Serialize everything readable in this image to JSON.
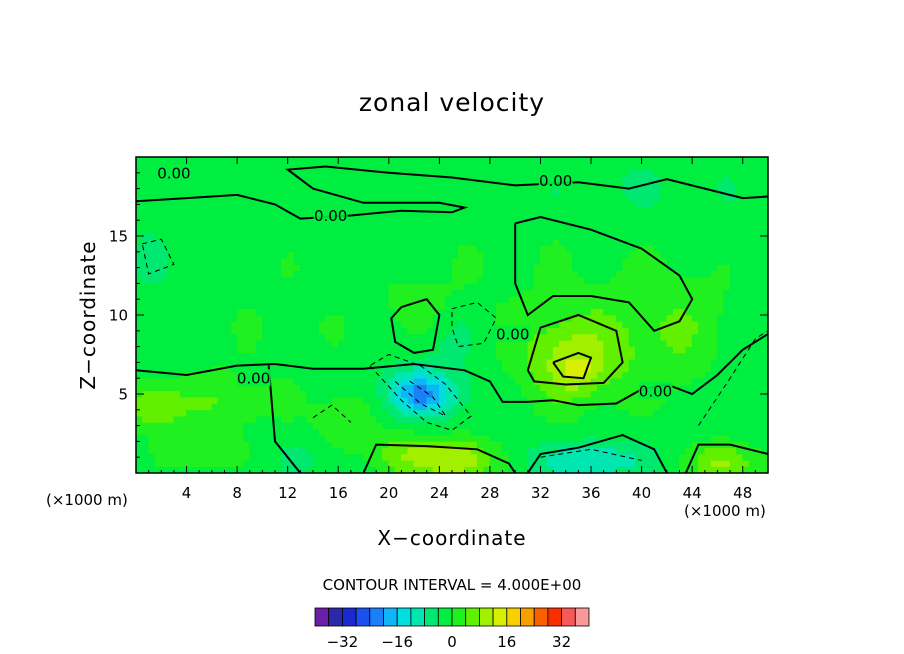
{
  "chart_data": {
    "type": "heatmap",
    "title": "zonal velocity",
    "xlabel": "X−coordinate",
    "ylabel": "Z−coordinate",
    "x_unit": "(×1000 m)",
    "xlim": [
      0,
      50
    ],
    "ylim": [
      0,
      20
    ],
    "xticks": [
      "4",
      "8",
      "12",
      "16",
      "20",
      "24",
      "28",
      "32",
      "36",
      "40",
      "44",
      "48"
    ],
    "xtick_values": [
      4,
      8,
      12,
      16,
      20,
      24,
      28,
      32,
      36,
      40,
      44,
      48
    ],
    "yticks": [
      "5",
      "10",
      "15"
    ],
    "ytick_values": [
      5,
      10,
      15
    ],
    "contour_labels": [
      {
        "text": "0.00",
        "x": 3.0,
        "y": 19.0
      },
      {
        "text": "0.00",
        "x": 33.2,
        "y": 18.5
      },
      {
        "text": "0.00",
        "x": 15.4,
        "y": 16.3
      },
      {
        "text": "0.00",
        "x": 29.8,
        "y": 8.8
      },
      {
        "text": "0.00",
        "x": 9.3,
        "y": 6.0
      },
      {
        "text": "0.00",
        "x": 41.1,
        "y": 5.2
      }
    ],
    "contour_interval_text": "CONTOUR INTERVAL = 4.000E+00",
    "colorbar": {
      "levels": [
        -36,
        -32,
        -28,
        -24,
        -20,
        -16,
        -12,
        -8,
        -4,
        0,
        4,
        8,
        12,
        16,
        20,
        24,
        28,
        32,
        36
      ],
      "colors": [
        "#6a1fa8",
        "#2a2aa8",
        "#1a2ad0",
        "#1a50f0",
        "#1a80f8",
        "#10b4f8",
        "#00dede",
        "#00e6b0",
        "#00e870",
        "#00ee40",
        "#20f020",
        "#60f000",
        "#a0f000",
        "#d8f000",
        "#f8d000",
        "#f8a000",
        "#f86000",
        "#f83000",
        "#f85858",
        "#f89898"
      ],
      "tick_labels": [
        "−32",
        "−16",
        "0",
        "16",
        "32"
      ],
      "tick_values": [
        -32,
        -16,
        0,
        16,
        32
      ]
    }
  }
}
